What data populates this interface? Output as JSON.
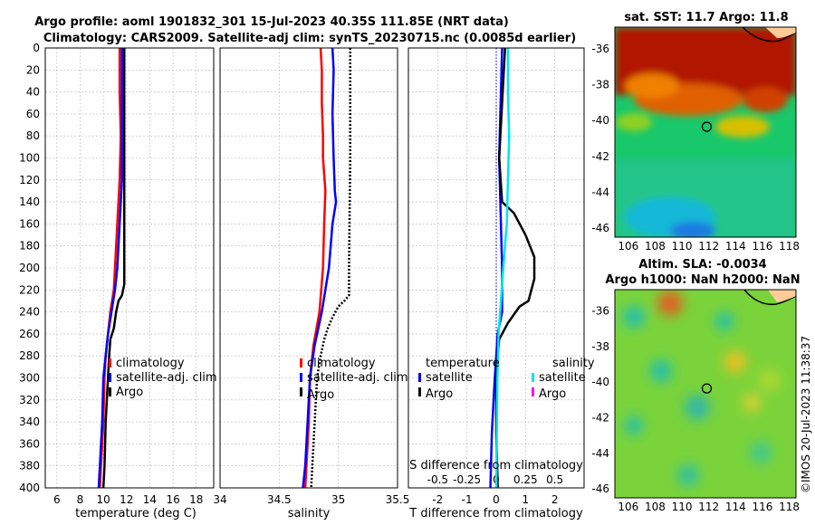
{
  "header": {
    "title_line1": "Argo profile: aoml 1901832_301 15-Jul-2023 40.35S 111.85E (NRT data)",
    "title_line2": "Climatology: CARS2009. Satellite-adj clim: synTS_20230715.nc (0.0085d earlier)"
  },
  "watermark": "©IMOS 20-Jul-2023 11:38:37",
  "colors": {
    "climatology": "#ff0000",
    "satellite": "#0000ff",
    "argo": "#000000",
    "salinity_sat": "#00e5ee",
    "salinity_argo": "#ff00ff"
  },
  "depth_ticks": [
    "0",
    "20",
    "40",
    "60",
    "80",
    "100",
    "120",
    "140",
    "160",
    "180",
    "200",
    "220",
    "240",
    "260",
    "280",
    "300",
    "320",
    "340",
    "360",
    "380",
    "400"
  ],
  "chart_data": [
    {
      "type": "line",
      "panel": "temperature",
      "xlabel": "temperature (deg C)",
      "xlim": [
        5,
        19.5
      ],
      "ylim": [
        400,
        0
      ],
      "xticks": [
        "6",
        "8",
        "10",
        "12",
        "14",
        "16",
        "18"
      ],
      "legend": [
        "climatology",
        "satellite-adj. clim",
        "Argo"
      ],
      "series": [
        {
          "name": "climatology",
          "depth": [
            0,
            40,
            80,
            120,
            140,
            160,
            180,
            200,
            220,
            240,
            260,
            280,
            300,
            340,
            380,
            400
          ],
          "values": [
            11.4,
            11.4,
            11.5,
            11.4,
            11.3,
            11.2,
            11.1,
            11.0,
            10.9,
            10.6,
            10.4,
            10.2,
            10.1,
            10.0,
            9.8,
            9.7
          ]
        },
        {
          "name": "satellite-adj. clim",
          "depth": [
            0,
            40,
            80,
            120,
            140,
            160,
            180,
            200,
            220,
            240,
            260,
            280,
            300,
            340,
            380,
            400
          ],
          "values": [
            11.6,
            11.6,
            11.6,
            11.6,
            11.5,
            11.4,
            11.3,
            11.2,
            11.0,
            10.7,
            10.4,
            10.2,
            10.0,
            9.9,
            9.7,
            9.6
          ]
        },
        {
          "name": "Argo",
          "depth": [
            0,
            50,
            100,
            150,
            200,
            215,
            225,
            230,
            240,
            255,
            265,
            280,
            300,
            340,
            380,
            400
          ],
          "values": [
            11.8,
            11.8,
            11.8,
            11.8,
            11.8,
            11.8,
            11.6,
            11.3,
            11.1,
            10.9,
            10.6,
            10.5,
            10.4,
            10.2,
            10.1,
            10.0
          ]
        }
      ]
    },
    {
      "type": "line",
      "panel": "salinity",
      "xlabel": "salinity",
      "xlim": [
        34,
        35.5
      ],
      "ylim": [
        400,
        0
      ],
      "xticks": [
        "34",
        "34.5",
        "35",
        "35.5"
      ],
      "legend": [
        "climatology",
        "satellite-adj. clim",
        "Argo"
      ],
      "series": [
        {
          "name": "climatology",
          "depth": [
            0,
            20,
            50,
            80,
            100,
            130,
            160,
            200,
            240,
            270,
            300,
            340,
            380,
            400
          ],
          "values": [
            34.85,
            34.86,
            34.86,
            34.87,
            34.87,
            34.89,
            34.88,
            34.87,
            34.84,
            34.79,
            34.76,
            34.75,
            34.73,
            34.72
          ]
        },
        {
          "name": "satellite-adj. clim",
          "depth": [
            0,
            20,
            60,
            100,
            130,
            140,
            160,
            200,
            240,
            270,
            300,
            340,
            380,
            400
          ],
          "values": [
            34.95,
            34.96,
            34.95,
            34.96,
            34.97,
            34.98,
            34.95,
            34.92,
            34.86,
            34.8,
            34.76,
            34.74,
            34.72,
            34.7
          ]
        },
        {
          "name": "Argo",
          "depth": [
            0,
            100,
            200,
            225,
            230,
            235,
            245,
            255,
            265,
            280,
            300,
            340,
            380,
            400
          ],
          "values": [
            35.1,
            35.1,
            35.09,
            35.09,
            35.05,
            35.0,
            34.95,
            34.91,
            34.88,
            34.85,
            34.82,
            34.8,
            34.78,
            34.77
          ]
        }
      ]
    },
    {
      "type": "line",
      "panel": "difference",
      "xlabel": "T difference from climatology",
      "xlabel_top": "S difference from climatology",
      "xlim": [
        -3,
        3
      ],
      "xlim_salinity": [
        -0.75,
        0.75
      ],
      "ylim": [
        400,
        0
      ],
      "xticks": [
        "-2",
        "-1",
        "0",
        "1",
        "2"
      ],
      "xticks_top": [
        "-0.5",
        "-0.25",
        "0",
        "0.25",
        "0.5"
      ],
      "legend_titles": [
        "temperature",
        "salinity"
      ],
      "legend_t": [
        "satellite",
        "Argo"
      ],
      "legend_s": [
        "satellite",
        "Argo"
      ],
      "series": [
        {
          "name": "T satellite",
          "depth": [
            0,
            50,
            100,
            150,
            200,
            240,
            260,
            300,
            350,
            400
          ],
          "values": [
            0.2,
            0.15,
            0.1,
            0.15,
            0.2,
            0.2,
            0.05,
            -0.05,
            -0.15,
            -0.2
          ]
        },
        {
          "name": "T Argo",
          "depth": [
            0,
            50,
            100,
            140,
            150,
            170,
            190,
            210,
            220,
            230,
            235,
            250,
            265,
            280,
            300,
            350,
            400
          ],
          "values": [
            0.3,
            0.2,
            0.1,
            0.2,
            0.6,
            1.0,
            1.3,
            1.3,
            1.2,
            1.1,
            0.8,
            0.4,
            0.1,
            0.05,
            0.0,
            0.0,
            0.05
          ]
        },
        {
          "name": "S satellite",
          "depth": [
            0,
            40,
            80,
            120,
            160,
            200,
            260,
            300,
            400
          ],
          "values": [
            0.1,
            0.1,
            0.11,
            0.1,
            0.09,
            0.06,
            0.02,
            0.01,
            0.0
          ]
        },
        {
          "name": "S Argo (zero line)",
          "depth": [
            0,
            400
          ],
          "values": [
            0.0,
            0.0
          ]
        }
      ]
    },
    {
      "type": "heatmap",
      "panel": "sst_map",
      "title": "sat. SST: 11.7 Argo: 11.8",
      "xticks": [
        "106",
        "108",
        "110",
        "112",
        "114",
        "116",
        "118"
      ],
      "yticks": [
        "-36",
        "-38",
        "-40",
        "-42",
        "-44",
        "-46"
      ],
      "xlim": [
        105,
        118.5
      ],
      "ylim": [
        -46.5,
        -34.8
      ],
      "marker": {
        "lon": 111.85,
        "lat": -40.35
      }
    },
    {
      "type": "heatmap",
      "panel": "sla_map",
      "title_line1": "Altim. SLA: -0.0034",
      "title_line2": "Argo h1000: NaN h2000: NaN",
      "xticks": [
        "106",
        "108",
        "110",
        "112",
        "114",
        "116",
        "118"
      ],
      "yticks": [
        "-36",
        "-38",
        "-40",
        "-42",
        "-44",
        "-46"
      ],
      "xlim": [
        105,
        118.5
      ],
      "ylim": [
        -46.5,
        -34.8
      ],
      "marker": {
        "lon": 111.85,
        "lat": -40.35
      }
    }
  ]
}
